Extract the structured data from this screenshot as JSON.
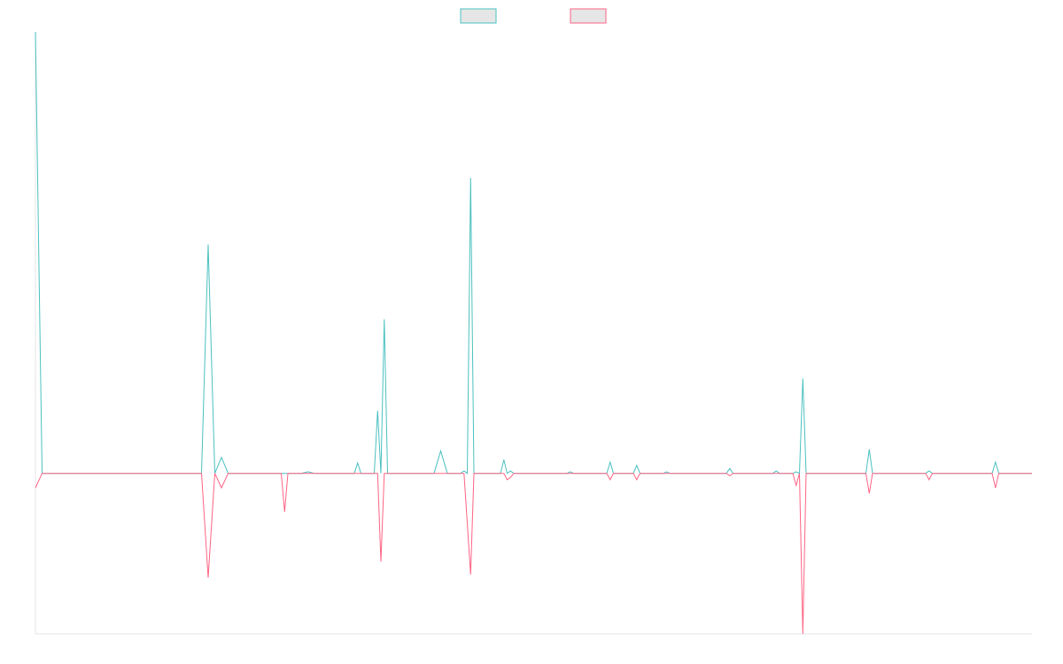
{
  "chart_data": {
    "type": "line",
    "title": "",
    "xlabel": "",
    "ylabel": "",
    "grid": false,
    "legend_position": "top-center",
    "x_count": 150,
    "ylim": [
      -20,
      55
    ],
    "series": [
      {
        "color": "#4bc0c0",
        "legend_fill": "#e6e6e6",
        "points": [
          [
            0,
            55
          ],
          [
            1,
            0
          ],
          [
            25,
            0
          ],
          [
            26,
            28.5
          ],
          [
            27,
            0
          ],
          [
            28,
            2
          ],
          [
            29,
            0
          ],
          [
            40,
            0
          ],
          [
            41,
            0.2
          ],
          [
            42,
            0
          ],
          [
            48,
            0
          ],
          [
            48.5,
            1.3
          ],
          [
            49,
            0
          ],
          [
            51,
            0
          ],
          [
            51.5,
            7.8
          ],
          [
            52,
            0
          ],
          [
            52.5,
            19.2
          ],
          [
            53,
            0
          ],
          [
            60,
            0
          ],
          [
            61,
            2.8
          ],
          [
            62,
            0
          ],
          [
            64,
            0
          ],
          [
            64.5,
            0.3
          ],
          [
            65,
            0
          ],
          [
            65.5,
            36.8
          ],
          [
            66,
            0
          ],
          [
            70,
            0
          ],
          [
            70.5,
            1.7
          ],
          [
            71,
            0
          ],
          [
            71.5,
            0.3
          ],
          [
            72,
            0
          ],
          [
            80,
            0
          ],
          [
            80.5,
            0.2
          ],
          [
            81,
            0
          ],
          [
            86,
            0
          ],
          [
            86.5,
            1.4
          ],
          [
            87,
            0
          ],
          [
            90,
            0
          ],
          [
            90.5,
            1
          ],
          [
            91,
            0
          ],
          [
            94.5,
            0
          ],
          [
            95,
            0.2
          ],
          [
            95.5,
            0
          ],
          [
            104,
            0
          ],
          [
            104.5,
            0.6
          ],
          [
            105,
            0
          ],
          [
            111,
            0
          ],
          [
            111.5,
            0.3
          ],
          [
            112,
            0
          ],
          [
            114,
            0
          ],
          [
            114.5,
            0.2
          ],
          [
            115,
            0
          ],
          [
            115.5,
            11.8
          ],
          [
            116,
            0
          ],
          [
            125,
            0
          ],
          [
            125.5,
            3
          ],
          [
            126,
            0
          ],
          [
            134,
            0
          ],
          [
            134.5,
            0.3
          ],
          [
            135,
            0
          ],
          [
            144,
            0
          ],
          [
            144.5,
            1.4
          ],
          [
            145,
            0
          ],
          [
            150,
            0
          ]
        ]
      },
      {
        "color": "#ff6384",
        "legend_fill": "#e6e6e6",
        "points": [
          [
            0,
            -1.8
          ],
          [
            1,
            0
          ],
          [
            25,
            0
          ],
          [
            26,
            -13
          ],
          [
            27,
            0
          ],
          [
            28,
            -1.8
          ],
          [
            29,
            0
          ],
          [
            37,
            0
          ],
          [
            37.5,
            -4.8
          ],
          [
            38,
            0
          ],
          [
            40,
            0
          ],
          [
            40.5,
            0
          ],
          [
            41,
            0
          ],
          [
            51.5,
            0
          ],
          [
            52,
            -11
          ],
          [
            52.5,
            0
          ],
          [
            64.5,
            0
          ],
          [
            65.5,
            -12.6
          ],
          [
            66,
            0
          ],
          [
            70.5,
            0
          ],
          [
            71,
            -0.8
          ],
          [
            71.5,
            -0.5
          ],
          [
            72,
            0
          ],
          [
            86,
            0
          ],
          [
            86.5,
            -0.8
          ],
          [
            87,
            0
          ],
          [
            90,
            0
          ],
          [
            90.5,
            -0.8
          ],
          [
            91,
            0
          ],
          [
            104,
            0
          ],
          [
            104.5,
            -0.3
          ],
          [
            105,
            0
          ],
          [
            111,
            0
          ],
          [
            111.5,
            0
          ],
          [
            112,
            0
          ],
          [
            114,
            0
          ],
          [
            114.5,
            -1.5
          ],
          [
            115,
            0
          ],
          [
            115.5,
            -20
          ],
          [
            116,
            0
          ],
          [
            125,
            0
          ],
          [
            125.5,
            -2.5
          ],
          [
            126,
            0
          ],
          [
            134,
            0
          ],
          [
            134.5,
            -0.8
          ],
          [
            135,
            0
          ],
          [
            144,
            0
          ],
          [
            144.5,
            -1.8
          ],
          [
            145,
            0
          ],
          [
            150,
            0
          ]
        ]
      }
    ]
  }
}
